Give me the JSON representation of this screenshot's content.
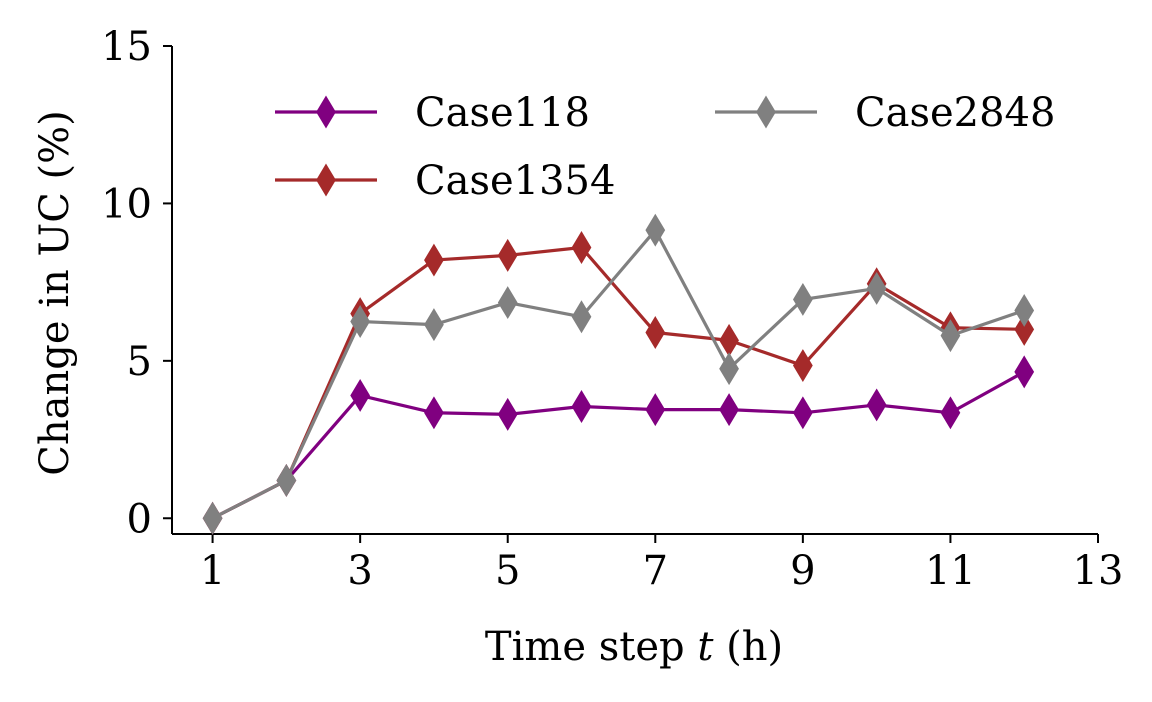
{
  "chart_data": {
    "type": "line",
    "title": "",
    "xlabel_prefix": "Time step ",
    "xlabel_var": "t",
    "xlabel_suffix": " (h)",
    "ylabel": "Change in UC (%)",
    "xlim": [
      0.45,
      13
    ],
    "ylim": [
      -0.5,
      15
    ],
    "xticks": [
      1,
      3,
      5,
      7,
      9,
      11,
      13
    ],
    "yticks": [
      0,
      5,
      10,
      15
    ],
    "grid": false,
    "legend_position": "top",
    "x": [
      1,
      2,
      3,
      4,
      5,
      6,
      7,
      8,
      9,
      10,
      11,
      12
    ],
    "series": [
      {
        "name": "Case118",
        "color": "#800080",
        "marker": "thin_diamond",
        "values": [
          0.0,
          1.2,
          3.9,
          3.35,
          3.3,
          3.55,
          3.45,
          3.45,
          3.35,
          3.6,
          3.35,
          4.65
        ]
      },
      {
        "name": "Case1354",
        "color": "#A52A2A",
        "marker": "thin_diamond",
        "values": [
          0.0,
          1.2,
          6.5,
          8.2,
          8.35,
          8.6,
          5.9,
          5.65,
          4.85,
          7.45,
          6.05,
          6.0
        ]
      },
      {
        "name": "Case2848",
        "color": "#808080",
        "marker": "thin_diamond",
        "values": [
          0.0,
          1.2,
          6.25,
          6.15,
          6.85,
          6.4,
          9.15,
          4.75,
          6.95,
          7.3,
          5.8,
          6.6
        ]
      }
    ]
  }
}
